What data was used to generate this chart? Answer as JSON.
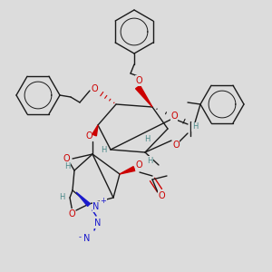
{
  "bg_color": "#dcdcdc",
  "bond_color": "#1a1a1a",
  "oxygen_color": "#cc0000",
  "nitrogen_color": "#1a1acc",
  "stereo_color": "#4a8888",
  "fig_w": 3.0,
  "fig_h": 3.0,
  "dpi": 100,
  "xlim": [
    0,
    300
  ],
  "ylim": [
    0,
    300
  ]
}
